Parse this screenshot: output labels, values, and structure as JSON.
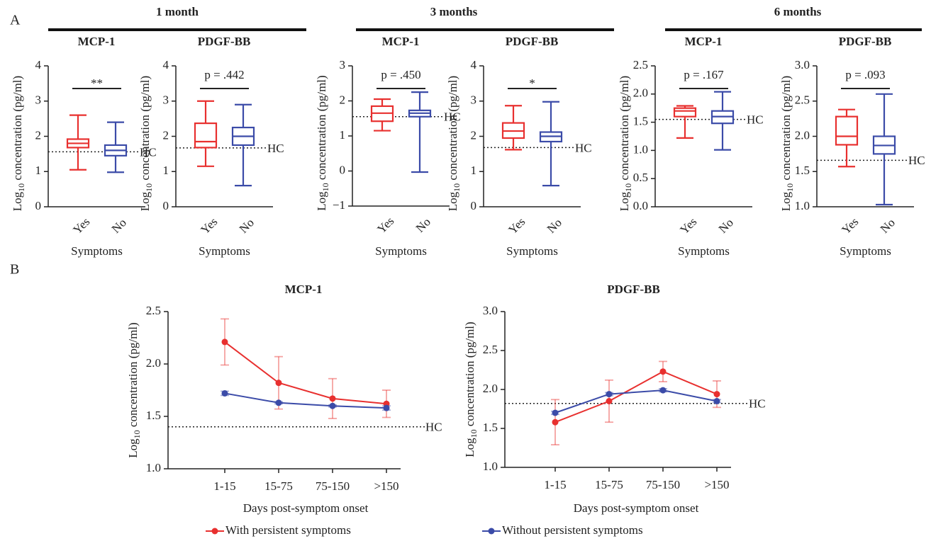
{
  "panel_labels": [
    "A",
    "B"
  ],
  "groups": [
    "1 month",
    "3 months",
    "6 months"
  ],
  "chart_data": [
    {
      "type": "box",
      "title": "MCP-1",
      "ylabel": [
        "Log",
        "10",
        " concentration (pg/ml)"
      ],
      "xlabel": "Symptoms",
      "categories": [
        "Yes",
        "No"
      ],
      "ylim": [
        0,
        4
      ],
      "yticks": [
        0,
        1,
        2,
        3,
        4
      ],
      "annotation": "**",
      "hc": 1.56,
      "hc_label": "HC",
      "boxes": [
        {
          "color": "#e8302f",
          "min": 1.05,
          "q1": 1.68,
          "median": 1.8,
          "q3": 1.92,
          "max": 2.6
        },
        {
          "color": "#3b4ba8",
          "min": 0.98,
          "q1": 1.45,
          "median": 1.6,
          "q3": 1.75,
          "max": 2.4
        }
      ]
    },
    {
      "type": "box",
      "title": "PDGF-BB",
      "ylabel": [
        "Log",
        "10",
        " concentration (pg/ml)"
      ],
      "xlabel": "Symptoms",
      "categories": [
        "Yes",
        "No"
      ],
      "ylim": [
        0,
        4
      ],
      "yticks": [
        0,
        1,
        2,
        3,
        4
      ],
      "annotation": "p = .442",
      "hc": 1.67,
      "hc_label": "HC",
      "boxes": [
        {
          "color": "#e8302f",
          "min": 1.15,
          "q1": 1.68,
          "median": 1.85,
          "q3": 2.37,
          "max": 3.0
        },
        {
          "color": "#3b4ba8",
          "min": 0.6,
          "q1": 1.75,
          "median": 2.0,
          "q3": 2.25,
          "max": 2.9
        }
      ]
    },
    {
      "type": "box",
      "title": "MCP-1",
      "ylabel": [
        "Log",
        "10",
        " concentration (pg/ml)"
      ],
      "xlabel": "Symptoms",
      "categories": [
        "Yes",
        "No"
      ],
      "ylim": [
        -1,
        3
      ],
      "yticks": [
        {
          "value": -1,
          "label": "−1"
        },
        0,
        1,
        2,
        3
      ],
      "annotation": "p = .450",
      "hc": 1.55,
      "hc_label": "HC",
      "boxes": [
        {
          "color": "#e8302f",
          "min": 1.15,
          "q1": 1.42,
          "median": 1.65,
          "q3": 1.85,
          "max": 2.05
        },
        {
          "color": "#3b4ba8",
          "min": -0.03,
          "q1": 1.55,
          "median": 1.65,
          "q3": 1.73,
          "max": 2.25
        }
      ]
    },
    {
      "type": "box",
      "title": "PDGF-BB",
      "ylabel": [
        "Log",
        "10",
        " concentration (pg/ml)"
      ],
      "xlabel": "Symptoms",
      "categories": [
        "Yes",
        "No"
      ],
      "ylim": [
        0,
        4
      ],
      "yticks": [
        0,
        1,
        2,
        3,
        4
      ],
      "annotation": "*",
      "hc": 1.68,
      "hc_label": "HC",
      "boxes": [
        {
          "color": "#e8302f",
          "min": 1.62,
          "q1": 1.95,
          "median": 2.15,
          "q3": 2.38,
          "max": 2.87
        },
        {
          "color": "#3b4ba8",
          "min": 0.6,
          "q1": 1.85,
          "median": 2.0,
          "q3": 2.12,
          "max": 2.98
        }
      ]
    },
    {
      "type": "box",
      "title": "MCP-1",
      "ylabel": [
        "Log",
        "10",
        " concentration (pg/ml)"
      ],
      "xlabel": "Symptoms",
      "categories": [
        "Yes",
        "No"
      ],
      "ylim": [
        0,
        2.5
      ],
      "yticks": [
        {
          "value": 0,
          "label": "0.0"
        },
        0.5,
        {
          "value": 1,
          "label": "1.0"
        },
        1.5,
        {
          "value": 2,
          "label": "2.0"
        },
        2.5
      ],
      "annotation": "p = .167",
      "hc": 1.55,
      "hc_label": "HC",
      "boxes": [
        {
          "color": "#e8302f",
          "min": 1.22,
          "q1": 1.6,
          "median": 1.7,
          "q3": 1.75,
          "max": 1.79
        },
        {
          "color": "#3b4ba8",
          "min": 1.01,
          "q1": 1.48,
          "median": 1.6,
          "q3": 1.7,
          "max": 2.04
        }
      ]
    },
    {
      "type": "box",
      "title": "PDGF-BB",
      "ylabel": [
        "Log",
        "10",
        " concentration (pg/ml)"
      ],
      "xlabel": "Symptoms",
      "categories": [
        "Yes",
        "No"
      ],
      "ylim": [
        1,
        3
      ],
      "yticks": [
        {
          "value": 1,
          "label": "1.0"
        },
        1.5,
        {
          "value": 2,
          "label": "2.0"
        },
        2.5,
        {
          "value": 3,
          "label": "3.0"
        }
      ],
      "annotation": "p = .093",
      "hc": 1.66,
      "hc_label": "HC",
      "boxes": [
        {
          "color": "#e8302f",
          "min": 1.57,
          "q1": 1.88,
          "median": 2.0,
          "q3": 2.28,
          "max": 2.38
        },
        {
          "color": "#3b4ba8",
          "min": 1.03,
          "q1": 1.75,
          "median": 1.87,
          "q3": 2.0,
          "max": 2.6
        }
      ]
    },
    {
      "type": "line",
      "title": "MCP-1",
      "ylabel": [
        "Log",
        "10",
        " concentration (pg/ml)"
      ],
      "xlabel": "Days post-symptom onset",
      "categories": [
        "1-15",
        "15-75",
        "75-150",
        ">150"
      ],
      "ylim": [
        1,
        2.5
      ],
      "yticks": [
        {
          "value": 1,
          "label": "1.0"
        },
        1.5,
        {
          "value": 2,
          "label": "2.0"
        },
        2.5
      ],
      "hc": 1.4,
      "hc_label": "HC",
      "series": [
        {
          "name": "With persistent symptoms",
          "color": "#e8302f",
          "values": [
            2.21,
            1.82,
            1.67,
            1.62
          ],
          "errors": [
            0.22,
            0.25,
            0.19,
            0.13
          ]
        },
        {
          "name": "Without persistent symptoms",
          "color": "#3b4ba8",
          "values": [
            1.72,
            1.63,
            1.6,
            1.58
          ],
          "errors": [
            0.02,
            0.01,
            0.01,
            0.02
          ]
        }
      ]
    },
    {
      "type": "line",
      "title": "PDGF-BB",
      "ylabel": [
        "Log",
        "10",
        " concentration (pg/ml)"
      ],
      "xlabel": "Days post-symptom onset",
      "categories": [
        "1-15",
        "15-75",
        "75-150",
        ">150"
      ],
      "ylim": [
        1,
        3
      ],
      "yticks": [
        {
          "value": 1,
          "label": "1.0"
        },
        1.5,
        {
          "value": 2,
          "label": "2.0"
        },
        2.5,
        {
          "value": 3,
          "label": "3.0"
        }
      ],
      "hc": 1.82,
      "hc_label": "HC",
      "series": [
        {
          "color": "#e8302f",
          "values": [
            1.58,
            1.85,
            2.23,
            1.94
          ],
          "errors": [
            0.29,
            0.27,
            0.13,
            0.17
          ]
        },
        {
          "color": "#3b4ba8",
          "values": [
            1.7,
            1.94,
            1.99,
            1.85
          ],
          "errors": [
            0.02,
            0.02,
            0.02,
            0.02
          ]
        }
      ]
    }
  ]
}
